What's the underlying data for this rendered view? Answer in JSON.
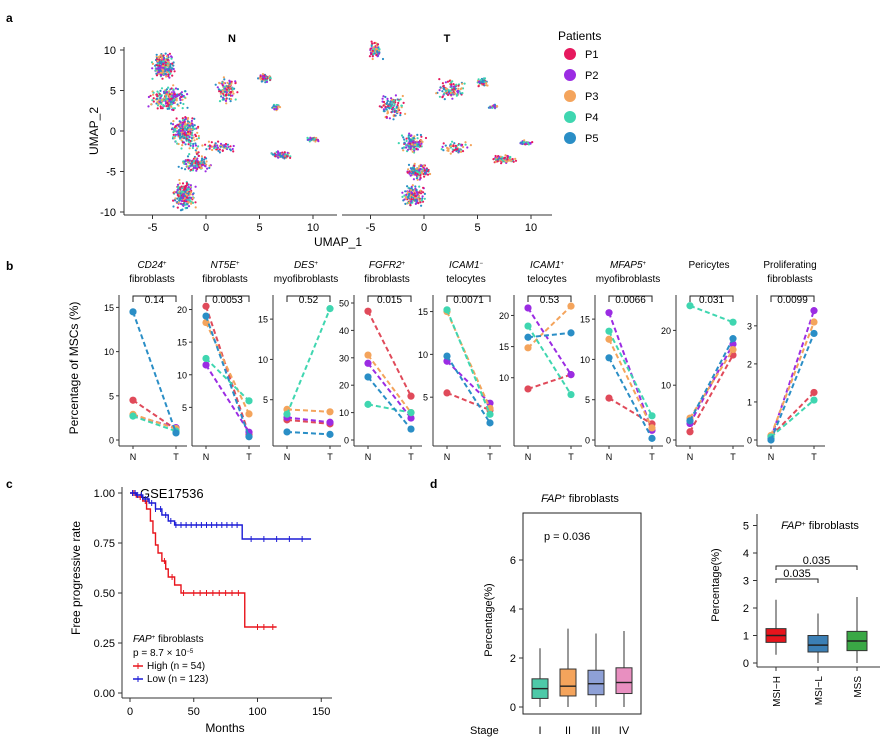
{
  "panel_labels": {
    "a": "a",
    "b": "b",
    "c": "c",
    "d": "d"
  },
  "panel_a": {
    "facet_titles": [
      "N",
      "T"
    ],
    "xlabel": "UMAP_1",
    "ylabel": "UMAP_2",
    "legend_title": "Patients",
    "legend": [
      {
        "label": "P1",
        "color": "#e6195e"
      },
      {
        "label": "P2",
        "color": "#9b2ce3"
      },
      {
        "label": "P3",
        "color": "#f4a45c"
      },
      {
        "label": "P4",
        "color": "#3fd6b0"
      },
      {
        "label": "P5",
        "color": "#2a8ec6"
      }
    ],
    "y_ticks": [
      10,
      5,
      0,
      -5,
      -10
    ],
    "x_ticks": [
      -5,
      0,
      5,
      10
    ]
  },
  "panel_b": {
    "ylabel": "Percentage of MSCs (%)",
    "x_ticks": [
      "N",
      "T"
    ],
    "patient_colors": [
      "#e04a5a",
      "#9b2ce3",
      "#f4a45c",
      "#3fd6b0",
      "#2a8ec6"
    ],
    "subpanels": [
      {
        "title1": "CD24",
        "sup": "+",
        "title2": "fibroblasts",
        "p": "0.14",
        "ymax": 15.5,
        "ticks": [
          0,
          5,
          10,
          15
        ],
        "N": [
          4.5,
          2.8,
          2.9,
          2.7,
          14.5
        ],
        "T": [
          1.2,
          1.4,
          1.3,
          1.0,
          0.8
        ]
      },
      {
        "title1": "NT5E",
        "sup": "+",
        "title2": "fibroblasts",
        "p": "0.0053",
        "ymax": 21,
        "ticks": [
          5,
          10,
          15,
          20
        ],
        "N": [
          20.5,
          11.5,
          18,
          12.5,
          19
        ],
        "T": [
          0.8,
          1.2,
          4,
          6,
          0.5
        ]
      },
      {
        "title1": "DES",
        "sup": "+",
        "title2": "myofibroblasts",
        "p": "0.52",
        "ymax": 17,
        "ticks": [
          5,
          10,
          15
        ],
        "N": [
          2.5,
          2.8,
          3.8,
          3.2,
          1.0
        ],
        "T": [
          2.0,
          2.2,
          3.5,
          16.3,
          0.7
        ]
      },
      {
        "title1": "FGFR2",
        "sup": "+",
        "title2": "fibroblasts",
        "p": "0.015",
        "ymax": 50,
        "ticks": [
          0,
          10,
          20,
          30,
          40,
          50
        ],
        "N": [
          47,
          28,
          31,
          13,
          23
        ],
        "T": [
          16,
          8,
          10,
          10,
          4
        ]
      },
      {
        "title1": "ICAM1",
        "sup": "−",
        "title2": "telocytes",
        "p": "0.0071",
        "ymax": 16,
        "ticks": [
          5,
          10,
          15
        ],
        "N": [
          5.5,
          9.2,
          15,
          15.2,
          9.8
        ],
        "T": [
          3.5,
          4.3,
          3.7,
          3.0,
          2.0
        ]
      },
      {
        "title1": "ICAM1",
        "sup": "+",
        "title2": "telocytes",
        "p": "0.53",
        "ymax": 22,
        "ticks": [
          10,
          15,
          20
        ],
        "N": [
          8.2,
          21.2,
          14.8,
          18.3,
          16.5
        ],
        "T": [
          10.5,
          10.5,
          21.5,
          7.3,
          17.2
        ]
      },
      {
        "title1": "MFAP5",
        "sup": "+",
        "title2": "myofibroblasts",
        "p": "0.0066",
        "ymax": 17,
        "ticks": [
          0,
          5,
          10,
          15
        ],
        "N": [
          5.2,
          15.8,
          12.5,
          13.5,
          10.2
        ],
        "T": [
          2.0,
          1.2,
          1.5,
          3.0,
          0.2
        ]
      },
      {
        "title1": "Pericytes",
        "sup": "",
        "title2": "",
        "p": "0.031",
        "ymax": 25,
        "ticks": [
          0,
          10,
          20
        ],
        "N": [
          1.5,
          3,
          4,
          24.5,
          3.5
        ],
        "T": [
          15.5,
          17.5,
          16.5,
          21.5,
          18.5
        ]
      },
      {
        "title1": "Proliferating",
        "sup": "",
        "title2": "fibroblasts",
        "p": "0.0099",
        "ymax": 3.6,
        "ticks": [
          0,
          1,
          2,
          3
        ],
        "N": [
          0.1,
          0.05,
          0.12,
          0.08,
          0.0
        ],
        "T": [
          1.25,
          3.4,
          3.1,
          1.05,
          2.8
        ]
      }
    ]
  },
  "panel_c": {
    "title": "GSE17536",
    "ylabel": "Free progressive rate",
    "xlabel": "Months",
    "y_ticks": [
      "1.00",
      "0.75",
      "0.50",
      "0.25",
      "0.00"
    ],
    "x_ticks": [
      "0",
      "50",
      "100",
      "150"
    ],
    "legend_title": "FAP",
    "legend_title_sup": "+",
    "legend_title_rest": " fibroblasts",
    "pvalue_text": "p = 8.7 × 10",
    "pvalue_exp": "−5",
    "series": [
      {
        "name": "High (n = 54)",
        "color": "#e8141c"
      },
      {
        "name": "Low (n = 123)",
        "color": "#1b1bd6"
      }
    ]
  },
  "chart_data": [
    {
      "type": "line",
      "title": "GSE17536",
      "xlabel": "Months",
      "ylabel": "Free progressive rate",
      "xlim": [
        0,
        150
      ],
      "ylim": [
        0,
        1
      ],
      "series": [
        {
          "name": "High (n = 54)",
          "x": [
            0,
            5,
            10,
            13,
            16,
            18,
            20,
            22,
            25,
            28,
            30,
            35,
            40,
            45,
            60,
            88,
            90,
            95,
            110,
            115
          ],
          "y": [
            1.0,
            0.98,
            0.96,
            0.92,
            0.86,
            0.8,
            0.74,
            0.7,
            0.66,
            0.62,
            0.58,
            0.54,
            0.5,
            0.5,
            0.5,
            0.5,
            0.33,
            0.33,
            0.33,
            0.33
          ]
        },
        {
          "name": "Low (n = 123)",
          "x": [
            0,
            5,
            10,
            15,
            20,
            25,
            30,
            35,
            40,
            60,
            85,
            88,
            100,
            120,
            140
          ],
          "y": [
            1.0,
            0.99,
            0.97,
            0.95,
            0.92,
            0.89,
            0.86,
            0.84,
            0.84,
            0.84,
            0.84,
            0.77,
            0.77,
            0.77,
            0.77
          ]
        }
      ]
    }
  ],
  "panel_d1": {
    "title": "FAP",
    "title_sup": "+",
    "title_rest": " fibroblasts",
    "ylabel": "Percentage(%)",
    "pvalue": "p = 0.036",
    "stage_label": "Stage",
    "categories": [
      "I",
      "II",
      "III",
      "IV"
    ],
    "y_ticks": [
      "0",
      "2",
      "4",
      "6"
    ],
    "colors": [
      "#4dc9a8",
      "#f4a45c",
      "#8ea0d6",
      "#e88fc0"
    ],
    "boxes": [
      {
        "min": 0.0,
        "q1": 0.35,
        "median": 0.75,
        "q3": 1.15,
        "max": 2.4
      },
      {
        "min": 0.0,
        "q1": 0.45,
        "median": 0.85,
        "q3": 1.55,
        "max": 3.2
      },
      {
        "min": 0.0,
        "q1": 0.5,
        "median": 0.95,
        "q3": 1.5,
        "max": 3.0
      },
      {
        "min": 0.0,
        "q1": 0.55,
        "median": 1.0,
        "q3": 1.6,
        "max": 3.1
      }
    ]
  },
  "panel_d2": {
    "title": "FAP",
    "title_sup": "+",
    "title_rest": " fibroblasts",
    "ylabel": "Percentage(%)",
    "categories": [
      "MSI−H",
      "MSI−L",
      "MSS"
    ],
    "y_ticks": [
      "0",
      "1",
      "2",
      "3",
      "4",
      "5"
    ],
    "colors": [
      "#e8141c",
      "#3b7fb5",
      "#3aa845"
    ],
    "comparisons": [
      {
        "label": "0.035",
        "from": 0,
        "to": 2
      },
      {
        "label": "0.035",
        "from": 0,
        "to": 1
      }
    ],
    "boxes": [
      {
        "min": 0.3,
        "q1": 0.75,
        "median": 1.0,
        "q3": 1.25,
        "max": 2.3
      },
      {
        "min": 0.0,
        "q1": 0.4,
        "median": 0.65,
        "q3": 1.0,
        "max": 1.8
      },
      {
        "min": 0.0,
        "q1": 0.45,
        "median": 0.8,
        "q3": 1.15,
        "max": 2.4
      }
    ]
  }
}
